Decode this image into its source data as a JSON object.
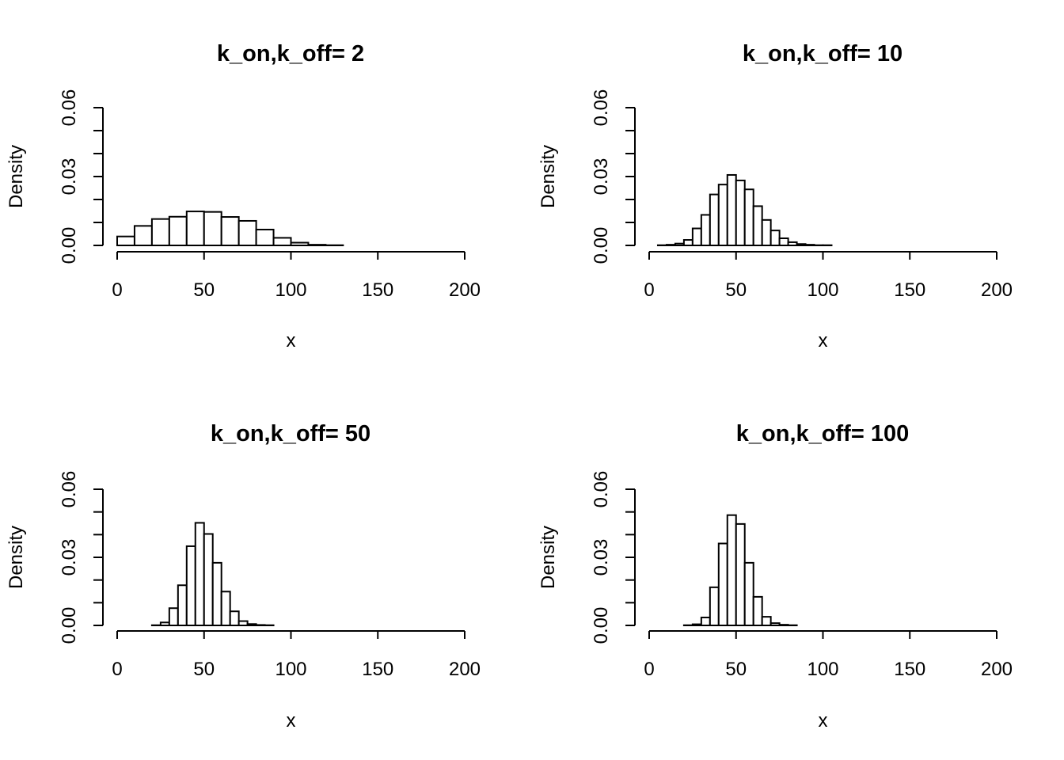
{
  "chart_data": [
    {
      "type": "bar",
      "title": "k_on,k_off= 2",
      "xlabel": "x",
      "ylabel": "Density",
      "xlim": [
        0,
        200
      ],
      "ylim": [
        0,
        0.06
      ],
      "x_ticks": [
        "0",
        "50",
        "100",
        "150",
        "200"
      ],
      "y_ticks": [
        "0.00",
        "0.03",
        "0.06"
      ],
      "bin_width": 10,
      "bin_start": 0,
      "values": [
        0.0039,
        0.0085,
        0.0115,
        0.0125,
        0.0148,
        0.0146,
        0.0124,
        0.0107,
        0.0069,
        0.0033,
        0.0012,
        0.0003,
        0.0001
      ]
    },
    {
      "type": "bar",
      "title": "k_on,k_off= 10",
      "xlabel": "x",
      "ylabel": "Density",
      "xlim": [
        0,
        200
      ],
      "ylim": [
        0,
        0.06
      ],
      "x_ticks": [
        "0",
        "50",
        "100",
        "150",
        "200"
      ],
      "y_ticks": [
        "0.00",
        "0.03",
        "0.06"
      ],
      "bin_width": 5,
      "bin_start": 5,
      "values": [
        0.0001,
        0.0003,
        0.0008,
        0.0024,
        0.0074,
        0.0133,
        0.0222,
        0.0265,
        0.0307,
        0.0283,
        0.0244,
        0.0171,
        0.0111,
        0.0065,
        0.0031,
        0.0014,
        0.0006,
        0.0003,
        0.0001,
        0.0001
      ]
    },
    {
      "type": "bar",
      "title": "k_on,k_off= 50",
      "xlabel": "x",
      "ylabel": "Density",
      "xlim": [
        0,
        200
      ],
      "ylim": [
        0,
        0.06
      ],
      "x_ticks": [
        "0",
        "50",
        "100",
        "150",
        "200"
      ],
      "y_ticks": [
        "0.00",
        "0.03",
        "0.06"
      ],
      "bin_width": 5,
      "bin_start": 20,
      "values": [
        0.0001,
        0.0013,
        0.0076,
        0.0177,
        0.0349,
        0.0452,
        0.0403,
        0.0276,
        0.0149,
        0.0062,
        0.0019,
        0.0006,
        0.0002,
        0.0001
      ]
    },
    {
      "type": "bar",
      "title": "k_on,k_off= 100",
      "xlabel": "x",
      "ylabel": "Density",
      "xlim": [
        0,
        200
      ],
      "ylim": [
        0,
        0.06
      ],
      "x_ticks": [
        "0",
        "50",
        "100",
        "150",
        "200"
      ],
      "y_ticks": [
        "0.00",
        "0.03",
        "0.06"
      ],
      "bin_width": 5,
      "bin_start": 20,
      "values": [
        0.0001,
        0.0005,
        0.0035,
        0.0168,
        0.0361,
        0.0486,
        0.0447,
        0.0276,
        0.0126,
        0.0038,
        0.001,
        0.0003,
        0.0001
      ]
    }
  ]
}
